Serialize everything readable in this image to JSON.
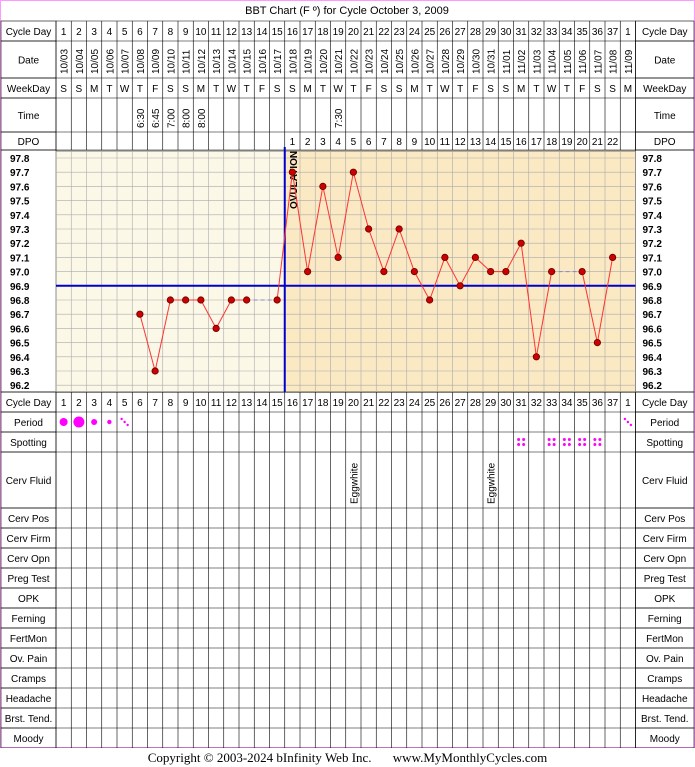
{
  "chart_data": {
    "type": "line",
    "title": "BBT Chart (F º) for Cycle October 3, 2009",
    "ylim": [
      96.2,
      97.8
    ],
    "y_ticks": [
      "97.8",
      "97.7",
      "97.6",
      "97.5",
      "97.4",
      "97.3",
      "97.2",
      "97.1",
      "97.0",
      "96.9",
      "96.8",
      "96.7",
      "96.6",
      "96.5",
      "96.4",
      "96.3",
      "96.2"
    ],
    "cycle_days": [
      1,
      2,
      3,
      4,
      5,
      6,
      7,
      8,
      9,
      10,
      11,
      12,
      13,
      14,
      15,
      16,
      17,
      18,
      19,
      20,
      21,
      22,
      23,
      24,
      25,
      26,
      27,
      28,
      29,
      30,
      31,
      32,
      33,
      34,
      35,
      36,
      37,
      1
    ],
    "dates": [
      "10/03",
      "10/04",
      "10/05",
      "10/06",
      "10/07",
      "10/08",
      "10/09",
      "10/10",
      "10/11",
      "10/12",
      "10/13",
      "10/14",
      "10/15",
      "10/16",
      "10/17",
      "10/18",
      "10/19",
      "10/20",
      "10/21",
      "10/22",
      "10/23",
      "10/24",
      "10/25",
      "10/26",
      "10/27",
      "10/28",
      "10/29",
      "10/30",
      "10/31",
      "11/01",
      "11/02",
      "11/03",
      "11/04",
      "11/05",
      "11/06",
      "11/07",
      "11/08",
      "11/09"
    ],
    "weekdays": [
      "S",
      "S",
      "M",
      "T",
      "W",
      "T",
      "F",
      "S",
      "S",
      "M",
      "T",
      "W",
      "T",
      "F",
      "S",
      "S",
      "M",
      "T",
      "W",
      "T",
      "F",
      "S",
      "S",
      "M",
      "T",
      "W",
      "T",
      "F",
      "S",
      "S",
      "M",
      "T",
      "W",
      "T",
      "F",
      "S",
      "S",
      "M"
    ],
    "times": {
      "5": "6:30",
      "6": "6:45",
      "7": "7:00",
      "8": "8:00",
      "9": "8:00",
      "18": "7:30"
    },
    "dpo": [
      "",
      "",
      "",
      "",
      "",
      "",
      "",
      "",
      "",
      "",
      "",
      "",
      "",
      "",
      "",
      "1",
      "2",
      "3",
      "4",
      "5",
      "6",
      "7",
      "8",
      "9",
      "10",
      "11",
      "12",
      "13",
      "14",
      "15",
      "16",
      "17",
      "18",
      "19",
      "20",
      "21",
      "22",
      ""
    ],
    "series": [
      {
        "values": [
          null,
          null,
          null,
          null,
          null,
          96.7,
          96.3,
          96.8,
          96.8,
          96.8,
          96.6,
          96.8,
          96.8,
          null,
          96.8,
          97.7,
          97.0,
          97.6,
          97.1,
          97.7,
          97.3,
          97.0,
          97.3,
          97.0,
          96.8,
          97.1,
          96.9,
          97.1,
          97.0,
          97.0,
          97.2,
          96.4,
          97.0,
          null,
          97.0,
          96.5,
          97.1,
          null
        ]
      }
    ],
    "coverline": 96.9,
    "ovulation_day_index": 14,
    "ovulation_label": "OVULATION",
    "grid": true
  },
  "labels": {
    "cycle_day": "Cycle Day",
    "date": "Date",
    "weekday": "WeekDay",
    "time": "Time",
    "dpo": "DPO",
    "period": "Period",
    "spotting": "Spotting",
    "cerv_fluid": "Cerv Fluid",
    "cerv_pos": "Cerv Pos",
    "cerv_firm": "Cerv Firm",
    "cerv_opn": "Cerv Opn",
    "preg_test": "Preg Test",
    "opk": "OPK",
    "ferning": "Ferning",
    "fertmon": "FertMon",
    "ov_pain": "Ov. Pain",
    "cramps": "Cramps",
    "headache": "Headache",
    "brst_tend": "Brst. Tend.",
    "moody": "Moody"
  },
  "period": {
    "0": "heavy",
    "1": "veryheavy",
    "2": "medium",
    "3": "light",
    "4": "spotting",
    "37": "spotting"
  },
  "spotting_days": [
    30,
    32,
    33,
    34,
    35
  ],
  "cerv_fluid": {
    "19": "Eggwhite",
    "28": "Eggwhite"
  },
  "colors": {
    "pre_bg": "#fcf8e8",
    "post_bg": "#fbe9c4",
    "line": "#ff3333",
    "dot": "#cc0000",
    "coverline": "#0000cc",
    "period": "#ff00ff",
    "frame": "#ff99ff"
  },
  "footer": {
    "copyright": "Copyright © 2003-2024 bInfinity Web Inc.",
    "site": "www.MyMonthlyCycles.com"
  }
}
